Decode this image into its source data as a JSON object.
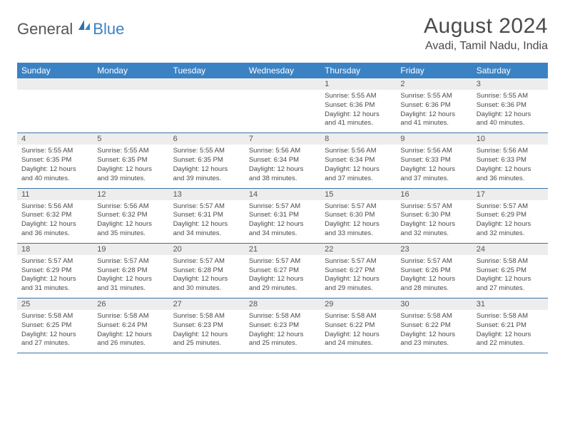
{
  "logo": {
    "text_a": "General",
    "text_b": "Blue"
  },
  "title": "August 2024",
  "location": "Avadi, Tamil Nadu, India",
  "colors": {
    "header_bg": "#3b82c4",
    "header_text": "#ffffff",
    "daynum_bg": "#ededed",
    "border": "#3b72a4",
    "body_text": "#4a4a4a"
  },
  "day_names": [
    "Sunday",
    "Monday",
    "Tuesday",
    "Wednesday",
    "Thursday",
    "Friday",
    "Saturday"
  ],
  "weeks": [
    [
      {
        "n": "",
        "sr": "",
        "ss": "",
        "dl": ""
      },
      {
        "n": "",
        "sr": "",
        "ss": "",
        "dl": ""
      },
      {
        "n": "",
        "sr": "",
        "ss": "",
        "dl": ""
      },
      {
        "n": "",
        "sr": "",
        "ss": "",
        "dl": ""
      },
      {
        "n": "1",
        "sr": "Sunrise: 5:55 AM",
        "ss": "Sunset: 6:36 PM",
        "dl": "Daylight: 12 hours and 41 minutes."
      },
      {
        "n": "2",
        "sr": "Sunrise: 5:55 AM",
        "ss": "Sunset: 6:36 PM",
        "dl": "Daylight: 12 hours and 41 minutes."
      },
      {
        "n": "3",
        "sr": "Sunrise: 5:55 AM",
        "ss": "Sunset: 6:36 PM",
        "dl": "Daylight: 12 hours and 40 minutes."
      }
    ],
    [
      {
        "n": "4",
        "sr": "Sunrise: 5:55 AM",
        "ss": "Sunset: 6:35 PM",
        "dl": "Daylight: 12 hours and 40 minutes."
      },
      {
        "n": "5",
        "sr": "Sunrise: 5:55 AM",
        "ss": "Sunset: 6:35 PM",
        "dl": "Daylight: 12 hours and 39 minutes."
      },
      {
        "n": "6",
        "sr": "Sunrise: 5:55 AM",
        "ss": "Sunset: 6:35 PM",
        "dl": "Daylight: 12 hours and 39 minutes."
      },
      {
        "n": "7",
        "sr": "Sunrise: 5:56 AM",
        "ss": "Sunset: 6:34 PM",
        "dl": "Daylight: 12 hours and 38 minutes."
      },
      {
        "n": "8",
        "sr": "Sunrise: 5:56 AM",
        "ss": "Sunset: 6:34 PM",
        "dl": "Daylight: 12 hours and 37 minutes."
      },
      {
        "n": "9",
        "sr": "Sunrise: 5:56 AM",
        "ss": "Sunset: 6:33 PM",
        "dl": "Daylight: 12 hours and 37 minutes."
      },
      {
        "n": "10",
        "sr": "Sunrise: 5:56 AM",
        "ss": "Sunset: 6:33 PM",
        "dl": "Daylight: 12 hours and 36 minutes."
      }
    ],
    [
      {
        "n": "11",
        "sr": "Sunrise: 5:56 AM",
        "ss": "Sunset: 6:32 PM",
        "dl": "Daylight: 12 hours and 36 minutes."
      },
      {
        "n": "12",
        "sr": "Sunrise: 5:56 AM",
        "ss": "Sunset: 6:32 PM",
        "dl": "Daylight: 12 hours and 35 minutes."
      },
      {
        "n": "13",
        "sr": "Sunrise: 5:57 AM",
        "ss": "Sunset: 6:31 PM",
        "dl": "Daylight: 12 hours and 34 minutes."
      },
      {
        "n": "14",
        "sr": "Sunrise: 5:57 AM",
        "ss": "Sunset: 6:31 PM",
        "dl": "Daylight: 12 hours and 34 minutes."
      },
      {
        "n": "15",
        "sr": "Sunrise: 5:57 AM",
        "ss": "Sunset: 6:30 PM",
        "dl": "Daylight: 12 hours and 33 minutes."
      },
      {
        "n": "16",
        "sr": "Sunrise: 5:57 AM",
        "ss": "Sunset: 6:30 PM",
        "dl": "Daylight: 12 hours and 32 minutes."
      },
      {
        "n": "17",
        "sr": "Sunrise: 5:57 AM",
        "ss": "Sunset: 6:29 PM",
        "dl": "Daylight: 12 hours and 32 minutes."
      }
    ],
    [
      {
        "n": "18",
        "sr": "Sunrise: 5:57 AM",
        "ss": "Sunset: 6:29 PM",
        "dl": "Daylight: 12 hours and 31 minutes."
      },
      {
        "n": "19",
        "sr": "Sunrise: 5:57 AM",
        "ss": "Sunset: 6:28 PM",
        "dl": "Daylight: 12 hours and 31 minutes."
      },
      {
        "n": "20",
        "sr": "Sunrise: 5:57 AM",
        "ss": "Sunset: 6:28 PM",
        "dl": "Daylight: 12 hours and 30 minutes."
      },
      {
        "n": "21",
        "sr": "Sunrise: 5:57 AM",
        "ss": "Sunset: 6:27 PM",
        "dl": "Daylight: 12 hours and 29 minutes."
      },
      {
        "n": "22",
        "sr": "Sunrise: 5:57 AM",
        "ss": "Sunset: 6:27 PM",
        "dl": "Daylight: 12 hours and 29 minutes."
      },
      {
        "n": "23",
        "sr": "Sunrise: 5:57 AM",
        "ss": "Sunset: 6:26 PM",
        "dl": "Daylight: 12 hours and 28 minutes."
      },
      {
        "n": "24",
        "sr": "Sunrise: 5:58 AM",
        "ss": "Sunset: 6:25 PM",
        "dl": "Daylight: 12 hours and 27 minutes."
      }
    ],
    [
      {
        "n": "25",
        "sr": "Sunrise: 5:58 AM",
        "ss": "Sunset: 6:25 PM",
        "dl": "Daylight: 12 hours and 27 minutes."
      },
      {
        "n": "26",
        "sr": "Sunrise: 5:58 AM",
        "ss": "Sunset: 6:24 PM",
        "dl": "Daylight: 12 hours and 26 minutes."
      },
      {
        "n": "27",
        "sr": "Sunrise: 5:58 AM",
        "ss": "Sunset: 6:23 PM",
        "dl": "Daylight: 12 hours and 25 minutes."
      },
      {
        "n": "28",
        "sr": "Sunrise: 5:58 AM",
        "ss": "Sunset: 6:23 PM",
        "dl": "Daylight: 12 hours and 25 minutes."
      },
      {
        "n": "29",
        "sr": "Sunrise: 5:58 AM",
        "ss": "Sunset: 6:22 PM",
        "dl": "Daylight: 12 hours and 24 minutes."
      },
      {
        "n": "30",
        "sr": "Sunrise: 5:58 AM",
        "ss": "Sunset: 6:22 PM",
        "dl": "Daylight: 12 hours and 23 minutes."
      },
      {
        "n": "31",
        "sr": "Sunrise: 5:58 AM",
        "ss": "Sunset: 6:21 PM",
        "dl": "Daylight: 12 hours and 22 minutes."
      }
    ]
  ]
}
